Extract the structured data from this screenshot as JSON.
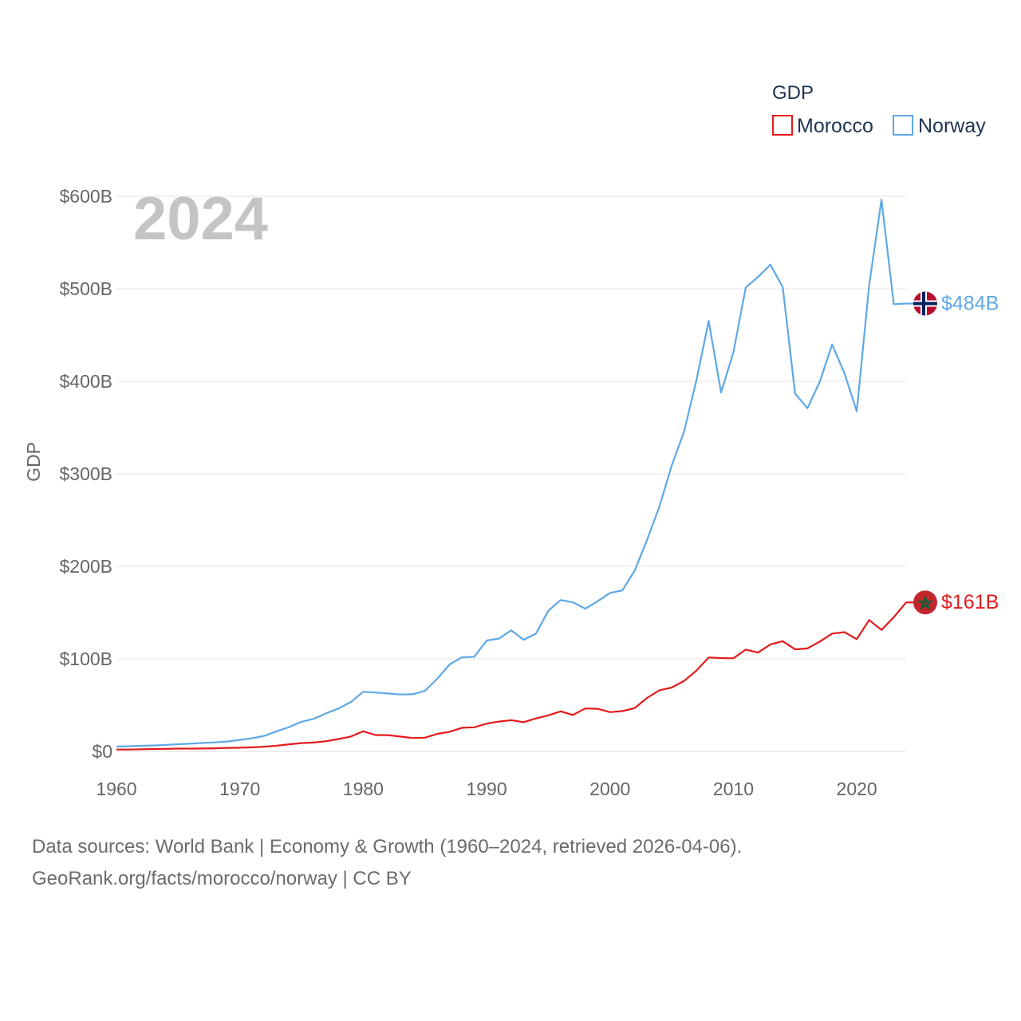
{
  "chart_data": {
    "type": "line",
    "legend_title": "GDP",
    "ylabel": "GDP",
    "year_label": "2024",
    "ylim": [
      0,
      600
    ],
    "x_range": [
      1960,
      2024
    ],
    "y_ticks": [
      {
        "value": 0,
        "label": "$0"
      },
      {
        "value": 100,
        "label": "$100B"
      },
      {
        "value": 200,
        "label": "$200B"
      },
      {
        "value": 300,
        "label": "$300B"
      },
      {
        "value": 400,
        "label": "$400B"
      },
      {
        "value": 500,
        "label": "$500B"
      },
      {
        "value": 600,
        "label": "$600B"
      }
    ],
    "x_ticks": [
      {
        "value": 1960,
        "label": "1960"
      },
      {
        "value": 1970,
        "label": "1970"
      },
      {
        "value": 1980,
        "label": "1980"
      },
      {
        "value": 1990,
        "label": "1990"
      },
      {
        "value": 2000,
        "label": "2000"
      },
      {
        "value": 2010,
        "label": "2010"
      },
      {
        "value": 2020,
        "label": "2020"
      }
    ],
    "series": [
      {
        "name": "Morocco",
        "color": "#e31a1c",
        "end_label": "$161B",
        "flag": "morocco-flag",
        "x": [
          1960,
          1961,
          1962,
          1963,
          1964,
          1965,
          1966,
          1967,
          1968,
          1969,
          1970,
          1971,
          1972,
          1973,
          1974,
          1975,
          1976,
          1977,
          1978,
          1979,
          1980,
          1981,
          1982,
          1983,
          1984,
          1985,
          1986,
          1987,
          1988,
          1989,
          1990,
          1991,
          1992,
          1993,
          1994,
          1995,
          1996,
          1997,
          1998,
          1999,
          2000,
          2001,
          2002,
          2003,
          2004,
          2005,
          2006,
          2007,
          2008,
          2009,
          2010,
          2011,
          2012,
          2013,
          2014,
          2015,
          2016,
          2017,
          2018,
          2019,
          2020,
          2021,
          2022,
          2023,
          2024
        ],
        "values": [
          2.0,
          2.0,
          2.3,
          2.6,
          2.8,
          3.0,
          3.0,
          3.1,
          3.4,
          3.8,
          4.0,
          4.4,
          5.1,
          6.2,
          7.7,
          9.0,
          9.6,
          11.0,
          13.4,
          16.0,
          21.7,
          17.7,
          17.6,
          16.0,
          14.5,
          14.8,
          19.0,
          21.2,
          25.5,
          26.0,
          30.0,
          32.2,
          33.7,
          31.6,
          35.6,
          39.0,
          43.3,
          39.4,
          46.4,
          46.0,
          42.4,
          43.5,
          46.8,
          57.8,
          66.0,
          69.0,
          76.2,
          87.2,
          101.5,
          100.9,
          100.6,
          110.0,
          106.8,
          115.6,
          119.1,
          110.3,
          111.3,
          118.6,
          127.3,
          128.9,
          121.3,
          142.0,
          131.3,
          145.0,
          161.0
        ]
      },
      {
        "name": "Norway",
        "color": "#5fa8e6",
        "end_label": "$484B",
        "flag": "norway-flag",
        "x": [
          1960,
          1961,
          1962,
          1963,
          1964,
          1965,
          1966,
          1967,
          1968,
          1969,
          1970,
          1971,
          1972,
          1973,
          1974,
          1975,
          1976,
          1977,
          1978,
          1979,
          1980,
          1981,
          1982,
          1983,
          1984,
          1985,
          1986,
          1987,
          1988,
          1989,
          1990,
          1991,
          1992,
          1993,
          1994,
          1995,
          1996,
          1997,
          1998,
          1999,
          2000,
          2001,
          2002,
          2003,
          2004,
          2005,
          2006,
          2007,
          2008,
          2009,
          2010,
          2011,
          2012,
          2013,
          2014,
          2015,
          2016,
          2017,
          2018,
          2019,
          2020,
          2021,
          2022,
          2023,
          2024
        ],
        "values": [
          5.2,
          5.6,
          6.0,
          6.4,
          7.0,
          7.8,
          8.4,
          9.1,
          9.7,
          10.7,
          12.4,
          14.2,
          16.8,
          21.8,
          26.3,
          32.1,
          35.3,
          41.2,
          46.4,
          53.4,
          64.5,
          63.6,
          62.6,
          61.5,
          61.7,
          65.4,
          78.5,
          94.0,
          101.6,
          102.2,
          119.8,
          121.9,
          130.9,
          120.6,
          127.2,
          152.0,
          163.5,
          161.1,
          154.2,
          162.3,
          171.3,
          174.0,
          195.4,
          228.6,
          264.4,
          308.9,
          345.6,
          400.9,
          465.2,
          387.9,
          431.1,
          501.4,
          512.8,
          526.0,
          501.7,
          386.7,
          370.9,
          399.5,
          439.8,
          408.7,
          367.6,
          503.5,
          596.3,
          483.4,
          484.0
        ]
      }
    ]
  },
  "footer": {
    "line1": "Data sources: World Bank | Economy & Growth (1960–2024, retrieved 2026-04-06).",
    "line2": "GeoRank.org/facts/morocco/norway | CC BY"
  }
}
